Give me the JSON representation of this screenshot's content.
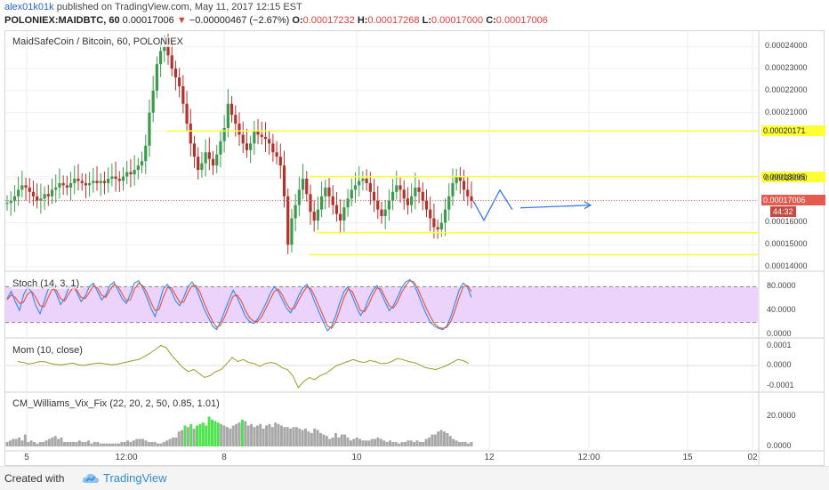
{
  "header": {
    "publisher": "alex01k01k",
    "published_text": "published on TradingView.com, May 11, 2017 12:15 EST",
    "symbol": "POLONIEX:MAIDBTC, 60",
    "last": "0.00017006",
    "change": "−0.00000467 (−2.67%)",
    "o_label": "O:",
    "o_value": "0.00017232",
    "h_label": "H:",
    "h_value": "0.00017268",
    "l_label": "L:",
    "l_value": "0.00017000",
    "c_label": "C:",
    "c_value": "0.00017006"
  },
  "footer": {
    "created_with": "Created with",
    "brand": "TradingView"
  },
  "colors": {
    "up": "#3c9a4c",
    "down": "#b3322d",
    "level": "#ffff33",
    "drawing": "#3d7be0",
    "stoch_k": "#2d8bf0",
    "stoch_d": "#e8503a",
    "stoch_band": "#e6c8fa",
    "mom": "#9a9a26",
    "vix_normal": "#a8a8a8",
    "vix_high": "#4ee24e",
    "price_badge": "#e55a4e",
    "level_badge": "#ffff33"
  },
  "chart_data": [
    {
      "type": "candlestick",
      "title": "MaidSafeCoin / Bitcoin, 60, POLONIEX",
      "y_ticks": [
        "0.00024000",
        "0.00023000",
        "0.00022000",
        "0.00021000",
        "0.00020171",
        "0.00018095",
        "0.00018000",
        "0.00017006",
        "0.00016000",
        "0.00015000",
        "0.00014000"
      ],
      "ylim": [
        0.00014,
        0.000245
      ],
      "x_ticks": [
        "5",
        "12:00",
        "8",
        "10",
        "12",
        "12:00",
        "15",
        "02"
      ],
      "current_price": 0.00017006,
      "countdown": "44:32",
      "horizontal_levels": [
        {
          "price": 0.00020171,
          "from": "8 early",
          "label": "0.00020171"
        },
        {
          "price": 0.00018095,
          "from": "9 evening",
          "label": "0.00018095"
        },
        {
          "price": 0.0001555,
          "from": "9 evening"
        },
        {
          "price": 0.0001455,
          "from": "9 evening"
        }
      ],
      "projection_arrows": "zig-zag forecast to the right of the last bar, then flat arrow",
      "closes": [
        0.000169,
        0.00017,
        0.000172,
        0.000175,
        0.000177,
        0.000176,
        0.000174,
        0.000172,
        0.00017,
        0.000171,
        0.000173,
        0.000172,
        0.000175,
        0.000176,
        0.000178,
        0.000177,
        0.000176,
        0.000178,
        0.00018,
        0.000179,
        0.000178,
        0.000177,
        0.000178,
        0.000179,
        0.000178,
        0.000179,
        0.000178,
        0.00018,
        0.000181,
        0.00018,
        0.000179,
        0.000181,
        0.000183,
        0.000182,
        0.000184,
        0.000186,
        0.000188,
        0.000195,
        0.00021,
        0.00022,
        0.000232,
        0.000238,
        0.00024,
        0.000236,
        0.00023,
        0.000226,
        0.000222,
        0.000214,
        0.000205,
        0.000196,
        0.00019,
        0.000184,
        0.000187,
        0.000192,
        0.000189,
        0.000186,
        0.000191,
        0.000197,
        0.000203,
        0.000214,
        0.000209,
        0.000205,
        0.0002,
        0.000196,
        0.000193,
        0.000196,
        0.000202,
        0.0002,
        0.000199,
        0.000198,
        0.000196,
        0.000192,
        0.00019,
        0.000186,
        0.000172,
        0.00015,
        0.000162,
        0.000168,
        0.000175,
        0.00018,
        0.000173,
        0.000165,
        0.000161,
        0.000166,
        0.000172,
        0.000176,
        0.000172,
        0.000168,
        0.000164,
        0.000161,
        0.000167,
        0.000171,
        0.000175,
        0.000177,
        0.000179,
        0.00018,
        0.000178,
        0.000174,
        0.00017,
        0.000166,
        0.000163,
        0.000166,
        0.00017,
        0.000174,
        0.000177,
        0.000175,
        0.000171,
        0.000168,
        0.000172,
        0.000176,
        0.000174,
        0.00017,
        0.000166,
        0.000162,
        0.000158,
        0.000157,
        0.00016,
        0.000166,
        0.000172,
        0.000178,
        0.000181,
        0.000179,
        0.000175,
        0.000172,
        0.00017
      ]
    },
    {
      "type": "line",
      "title": "Stoch (14, 3, 1)",
      "y_ticks": [
        "80.0000",
        "40.0000",
        "0.0000"
      ],
      "ylim": [
        0,
        100
      ],
      "bands": [
        20,
        80
      ],
      "series": [
        {
          "name": "%K",
          "values": [
            60,
            72,
            55,
            40,
            66,
            80,
            70,
            48,
            35,
            55,
            76,
            82,
            68,
            50,
            60,
            78,
            84,
            70,
            55,
            64,
            80,
            86,
            72,
            58,
            66,
            82,
            88,
            74,
            60,
            52,
            68,
            86,
            90,
            78,
            62,
            44,
            30,
            52,
            76,
            84,
            72,
            56,
            48,
            62,
            80,
            88,
            78,
            60,
            42,
            28,
            14,
            8,
            22,
            40,
            58,
            74,
            62,
            46,
            30,
            22,
            18,
            26,
            38,
            52,
            68,
            80,
            72,
            58,
            44,
            36,
            50,
            66,
            78,
            84,
            70,
            52,
            36,
            20,
            6,
            14,
            32,
            54,
            72,
            80,
            64,
            46,
            32,
            42,
            60,
            74,
            82,
            70,
            54,
            40,
            48,
            62,
            78,
            88,
            92,
            84,
            68,
            50,
            34,
            20,
            14,
            10,
            8,
            14,
            30,
            52,
            74,
            86,
            80,
            62
          ]
        },
        {
          "name": "%D",
          "values": [
            58,
            66,
            62,
            52,
            54,
            68,
            72,
            62,
            48,
            46,
            62,
            76,
            74,
            60,
            56,
            68,
            78,
            74,
            62,
            60,
            70,
            82,
            78,
            66,
            62,
            74,
            84,
            80,
            68,
            56,
            58,
            76,
            86,
            82,
            70,
            54,
            40,
            42,
            62,
            78,
            78,
            66,
            54,
            54,
            70,
            82,
            82,
            70,
            52,
            36,
            22,
            12,
            16,
            30,
            48,
            64,
            66,
            56,
            40,
            28,
            22,
            22,
            30,
            44,
            58,
            72,
            76,
            66,
            52,
            42,
            44,
            58,
            70,
            80,
            76,
            62,
            46,
            30,
            14,
            10,
            22,
            42,
            62,
            76,
            72,
            56,
            40,
            38,
            50,
            66,
            78,
            76,
            62,
            48,
            44,
            54,
            70,
            82,
            90,
            88,
            76,
            60,
            44,
            30,
            18,
            12,
            10,
            12,
            22,
            40,
            62,
            80,
            82,
            72
          ]
        }
      ]
    },
    {
      "type": "line",
      "title": "Mom (10, close)",
      "y_ticks": [
        "0.0001",
        "0.0000",
        "-0.0001"
      ],
      "ylim": [
        -0.00012,
        0.00012
      ],
      "series": [
        {
          "name": "Mom",
          "values": [
            2e-05,
            1.5e-05,
            8e-06,
            1.2e-05,
            2e-05,
            1.8e-05,
            1e-05,
            5e-06,
            3e-06,
            8e-06,
            1.2e-05,
            4e-06,
            0.0,
            6e-06,
            1e-05,
            1.2e-05,
            8e-06,
            4e-06,
            6e-06,
            1.2e-05,
            1.8e-05,
            2.5e-05,
            3e-05,
            4.5e-05,
            6e-05,
            8e-05,
            0.0001,
            9e-05,
            5e-05,
            2e-05,
            -1e-05,
            -3e-05,
            -2e-05,
            -4e-05,
            -6e-05,
            -5e-05,
            -3e-05,
            -2e-05,
            1e-05,
            4e-05,
            2e-05,
            3e-05,
            1.5e-05,
            1e-05,
            -5e-06,
            1e-05,
            1.5e-05,
            1e-05,
            -1e-05,
            -2e-05,
            -5e-05,
            -0.00011,
            -8e-05,
            -6e-05,
            -7e-05,
            -5e-05,
            -4e-05,
            -2e-05,
            0.0,
            1e-05,
            2e-05,
            3e-05,
            2e-05,
            1.5e-05,
            2.5e-05,
            2e-05,
            1e-05,
            1e-05,
            2e-05,
            3.5e-05,
            3e-05,
            2e-05,
            1.5e-05,
            5e-06,
            -1e-05,
            -1.5e-05,
            -2e-05,
            -1e-05,
            0.0,
            1.5e-05,
            3e-05,
            2.5e-05,
            1e-05
          ]
        }
      ]
    },
    {
      "type": "bar",
      "title": "CM_Williams_Vix_Fix (22, 20, 2, 50, 0.85, 1.01)",
      "y_ticks": [
        "20.0000",
        "0.0000"
      ],
      "ylim": [
        0,
        34
      ],
      "series": [
        {
          "name": "Vix Fix",
          "values": [
            3,
            4,
            5,
            5,
            6,
            4,
            8,
            3,
            4,
            3,
            2,
            3,
            3,
            4,
            5,
            6,
            7,
            5,
            6,
            3,
            3,
            3,
            3,
            3,
            4,
            3,
            3,
            4,
            2,
            3,
            3,
            2,
            2,
            2,
            2,
            2,
            2,
            2,
            3,
            3,
            4,
            3,
            4,
            5,
            5,
            5,
            4,
            3,
            3,
            3,
            2,
            2,
            3,
            4,
            5,
            6,
            6,
            10,
            11,
            14,
            13,
            15,
            12,
            14,
            15,
            16,
            14,
            20,
            18,
            17,
            16,
            15,
            14,
            13,
            12,
            14,
            15,
            16,
            18,
            17,
            14,
            15,
            13,
            14,
            15,
            12,
            14,
            15,
            13,
            16,
            15,
            14,
            13,
            13,
            12,
            13,
            13,
            12,
            11,
            12,
            10,
            9,
            12,
            11,
            9,
            8,
            7,
            5,
            6,
            9,
            6,
            8,
            8,
            6,
            4,
            5,
            6,
            5,
            4,
            4,
            4,
            5,
            5,
            6,
            5,
            4,
            3,
            4,
            3,
            3,
            2,
            3,
            3,
            4,
            4,
            3,
            4,
            3,
            3,
            5,
            6,
            8,
            8,
            10,
            11,
            10,
            9,
            7,
            5,
            4,
            3,
            3,
            3,
            2,
            3
          ]
        }
      ]
    }
  ]
}
